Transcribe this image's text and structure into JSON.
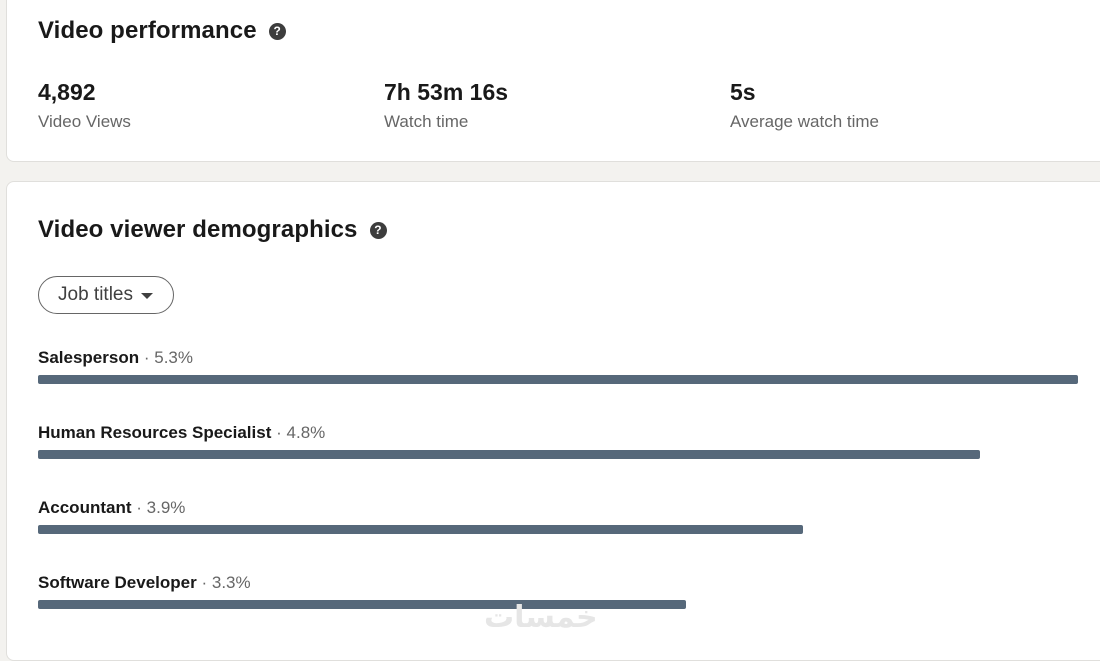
{
  "performance": {
    "title": "Video performance",
    "metrics": [
      {
        "value": "4,892",
        "label": "Video Views"
      },
      {
        "value": "7h 53m 16s",
        "label": "Watch time"
      },
      {
        "value": "5s",
        "label": "Average watch time"
      }
    ]
  },
  "demographics": {
    "title": "Video viewer demographics",
    "filter_label": "Job titles",
    "items": [
      {
        "name": "Salesperson",
        "separator": "·",
        "percent_label": "5.3%",
        "percent": 5.3
      },
      {
        "name": "Human Resources Specialist",
        "separator": "·",
        "percent_label": "4.8%",
        "percent": 4.8
      },
      {
        "name": "Accountant",
        "separator": "·",
        "percent_label": "3.9%",
        "percent": 3.9
      },
      {
        "name": "Software Developer",
        "separator": "·",
        "percent_label": "3.3%",
        "percent": 3.3
      }
    ]
  },
  "icons": {
    "help": "question-circle-icon",
    "dropdown": "caret-down-icon"
  },
  "colors": {
    "bar": "#56687a",
    "page_bg": "#f3f2ef",
    "card_bg": "#ffffff"
  },
  "watermark": "خمسات"
}
